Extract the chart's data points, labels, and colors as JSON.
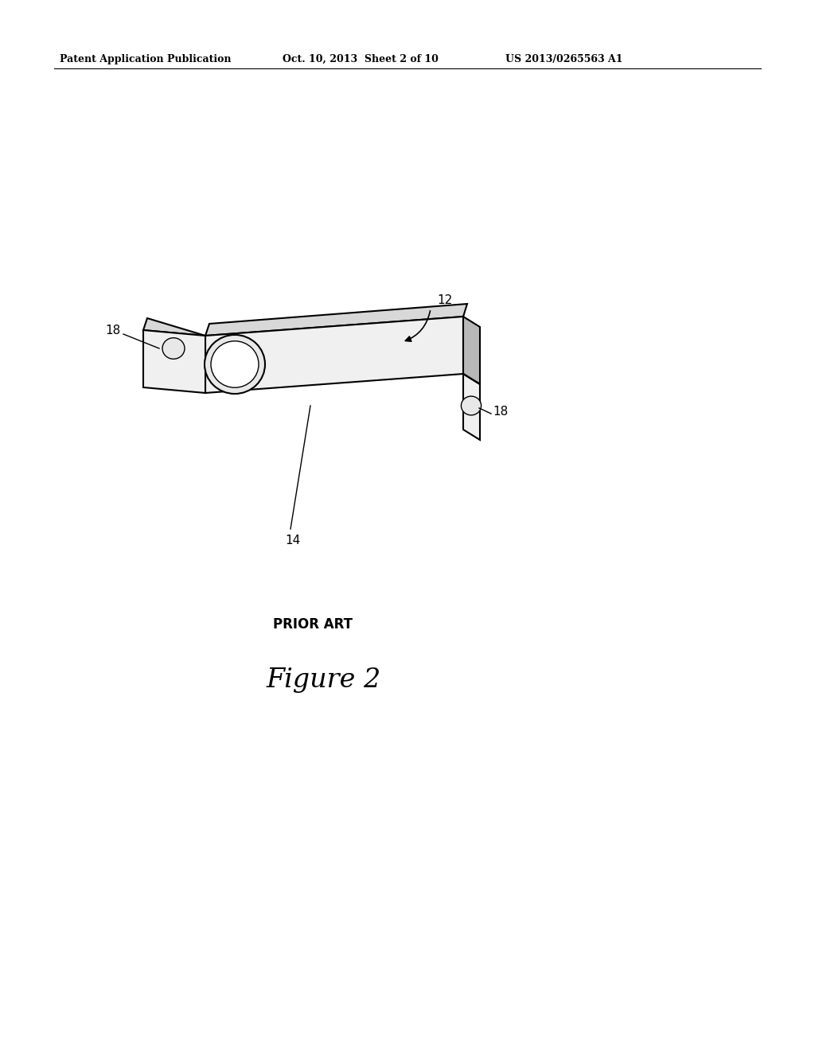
{
  "bg_color": "#ffffff",
  "header_left": "Patent Application Publication",
  "header_mid": "Oct. 10, 2013  Sheet 2 of 10",
  "header_right": "US 2013/0265563 A1",
  "figure_label": "Figure 2",
  "prior_art_label": "PRIOR ART",
  "label_12": "12",
  "label_14": "14",
  "label_18a": "18",
  "label_18b": "18",
  "line_color": "#000000",
  "fill_top": "#d8d8d8",
  "fill_front": "#f0f0f0",
  "fill_right": "#b8b8b8",
  "fill_tab": "#f0f0f0",
  "fill_tab_top": "#d8d8d8"
}
